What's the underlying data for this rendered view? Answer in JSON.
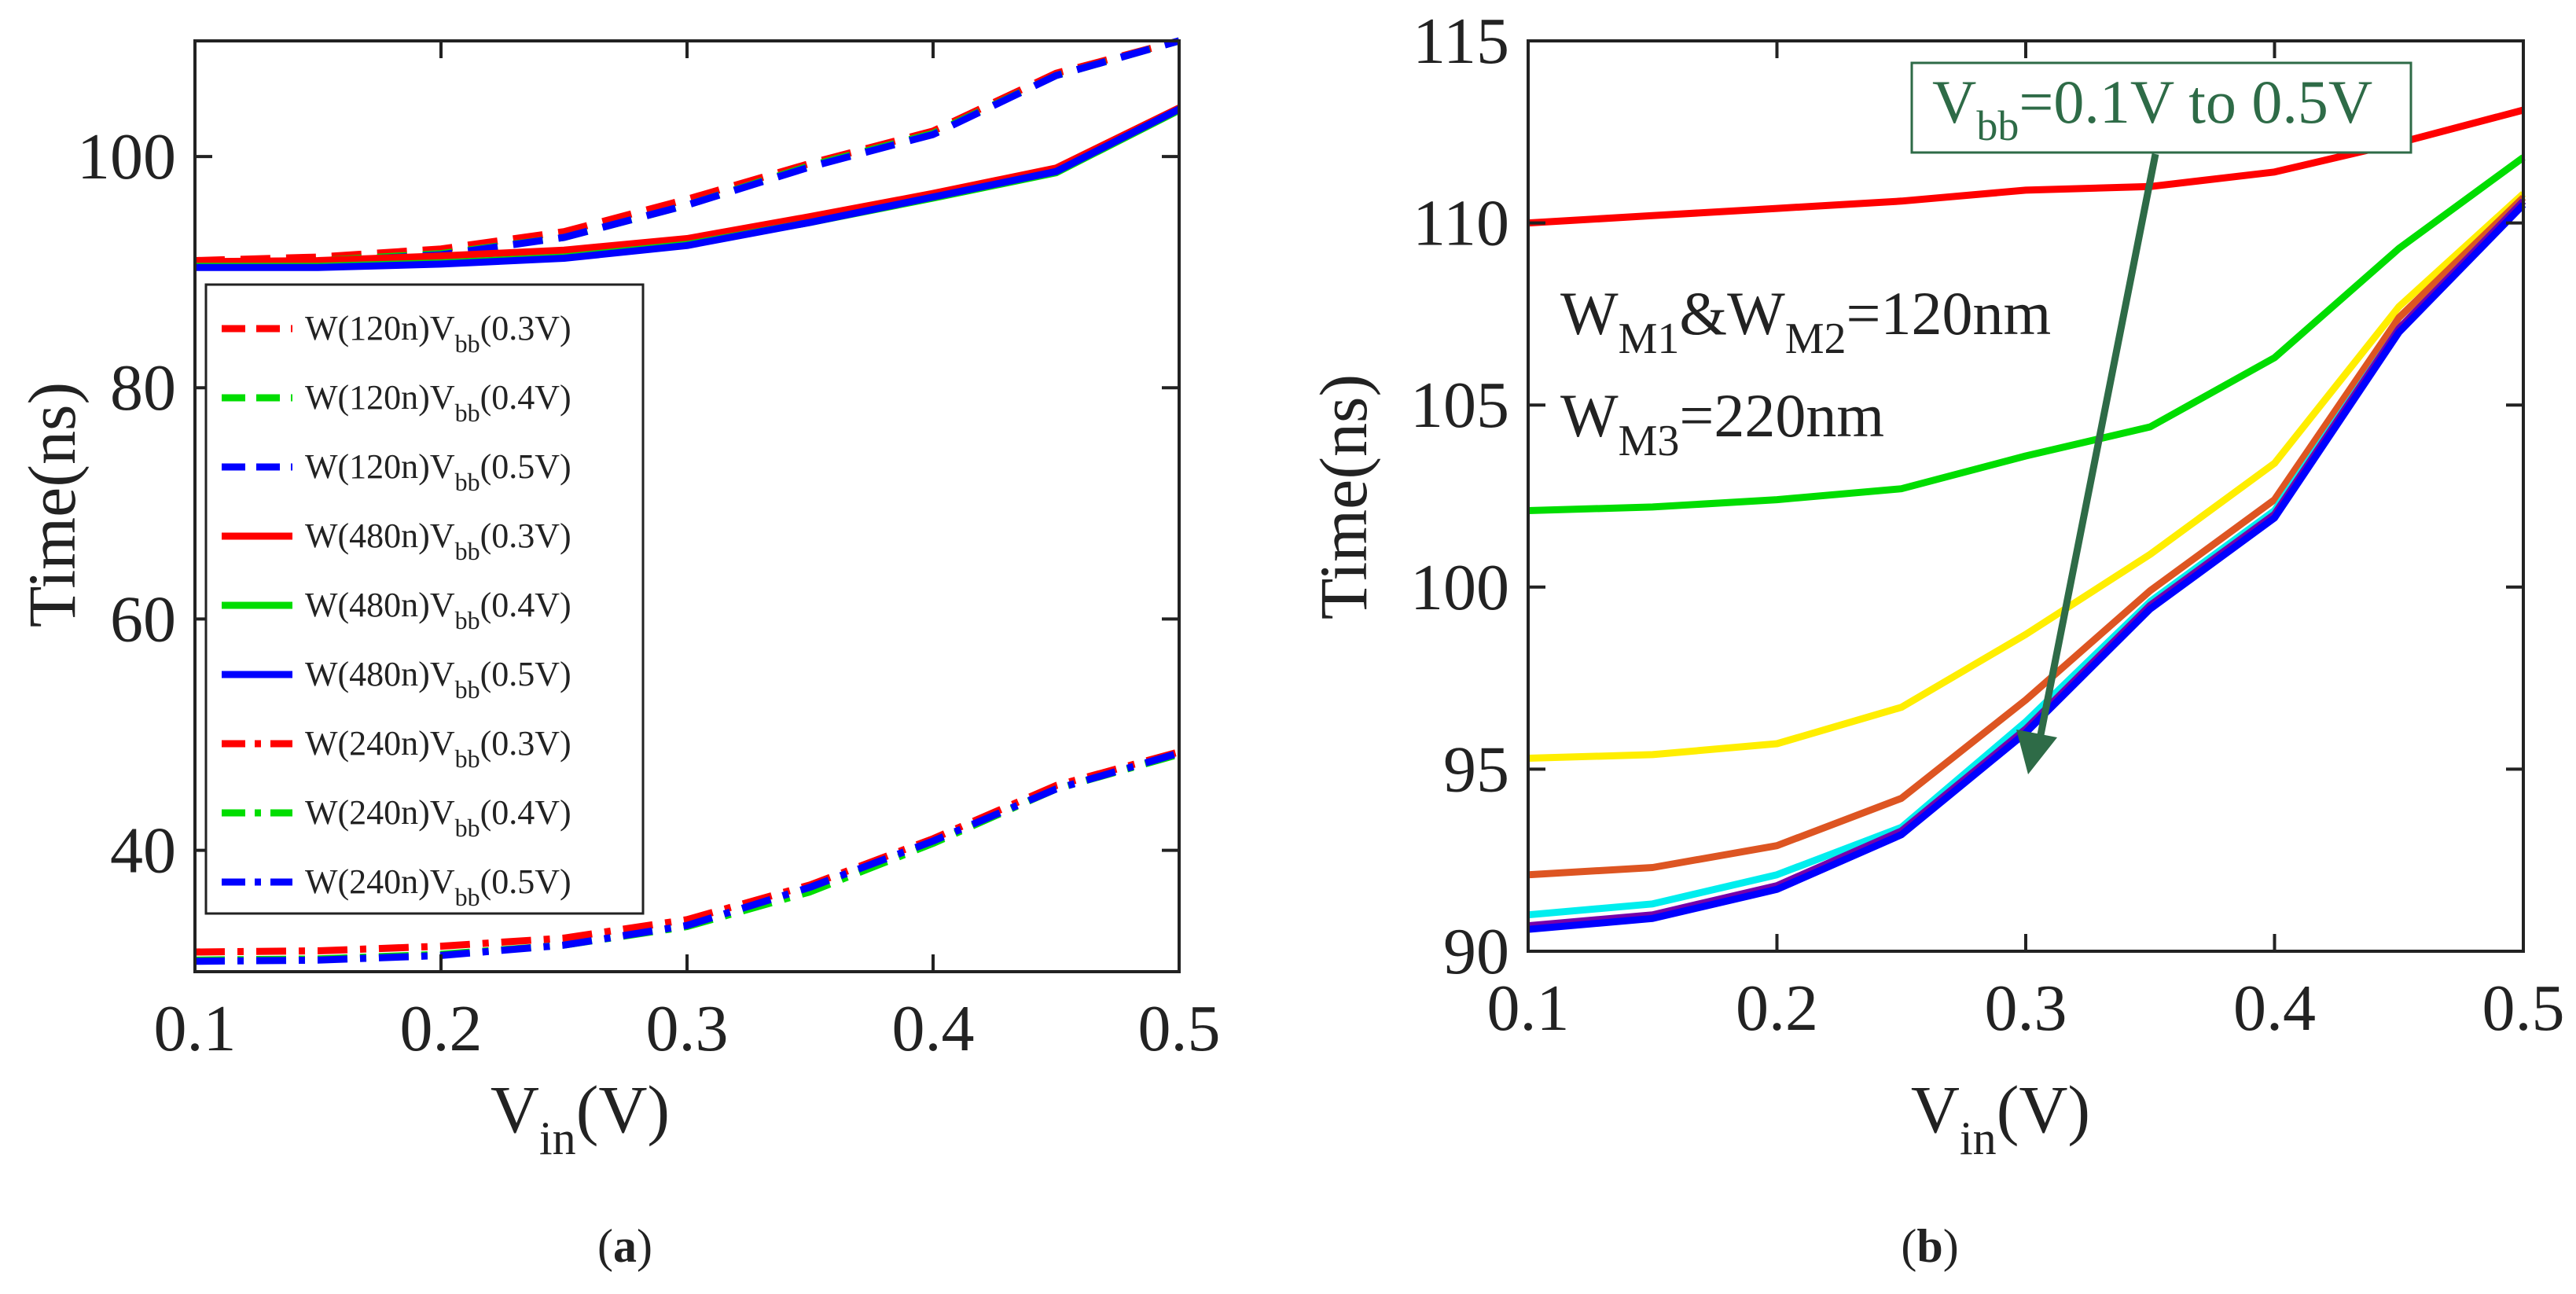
{
  "chart_data": [
    {
      "type": "line",
      "panel": "a",
      "caption": "(a)",
      "xlabel": "V_in(V)",
      "ylabel": "Time(ns)",
      "xlim": [
        0.1,
        0.5
      ],
      "ylim": [
        29.5,
        110
      ],
      "xticks": [
        "0.1",
        "0.2",
        "0.3",
        "0.4",
        "0.5"
      ],
      "yticks": [
        {
          "v": 40,
          "label": "40"
        },
        {
          "v": 60,
          "label": "60"
        },
        {
          "v": 80,
          "label": "80"
        },
        {
          "v": 100,
          "label": "100"
        }
      ],
      "grid": false,
      "legend_position": "left",
      "x": [
        0.1,
        0.15,
        0.2,
        0.25,
        0.3,
        0.35,
        0.4,
        0.45,
        0.5
      ],
      "series": [
        {
          "name": "W(120n)V_bb(0.3V)",
          "color": "#ff0000",
          "dash": "dashed",
          "values": [
            91.0,
            91.3,
            92.0,
            93.5,
            96.3,
            99.4,
            102.2,
            107.2,
            110.0
          ]
        },
        {
          "name": "W(120n)V_bb(0.4V)",
          "color": "#00dd00",
          "dash": "dashed",
          "values": [
            90.7,
            91.0,
            91.6,
            93.0,
            95.8,
            99.2,
            102.0,
            107.0,
            110.0
          ]
        },
        {
          "name": "W(120n)V_bb(0.5V)",
          "color": "#0000ff",
          "dash": "dashed",
          "values": [
            90.6,
            90.9,
            91.5,
            93.0,
            95.8,
            99.1,
            101.9,
            107.0,
            110.0
          ]
        },
        {
          "name": "W(480n)V_bb(0.3V)",
          "color": "#ff0000",
          "dash": "solid",
          "values": [
            90.9,
            91.0,
            91.4,
            91.9,
            92.9,
            94.8,
            96.8,
            99.0,
            104.2
          ]
        },
        {
          "name": "W(480n)V_bb(0.4V)",
          "color": "#00dd00",
          "dash": "solid",
          "values": [
            90.5,
            90.5,
            90.8,
            91.3,
            92.4,
            94.3,
            96.4,
            98.6,
            104.0
          ]
        },
        {
          "name": "W(480n)V_bb(0.5V)",
          "color": "#0000ff",
          "dash": "solid",
          "values": [
            90.4,
            90.4,
            90.7,
            91.2,
            92.3,
            94.3,
            96.5,
            98.7,
            104.1
          ]
        },
        {
          "name": "W(240n)V_bb(0.3V)",
          "color": "#ff0000",
          "dash": "dashdot",
          "values": [
            31.2,
            31.3,
            31.7,
            32.4,
            34.0,
            37.0,
            41.0,
            45.6,
            48.5
          ]
        },
        {
          "name": "W(240n)V_bb(0.4V)",
          "color": "#00dd00",
          "dash": "dashdot",
          "values": [
            30.5,
            30.6,
            31.0,
            31.8,
            33.4,
            36.4,
            40.6,
            45.3,
            48.3
          ]
        },
        {
          "name": "W(240n)V_bb(0.5V)",
          "color": "#0000ff",
          "dash": "dashdot",
          "values": [
            30.4,
            30.5,
            30.9,
            31.8,
            33.5,
            36.8,
            40.8,
            45.3,
            48.4
          ]
        }
      ]
    },
    {
      "type": "line",
      "panel": "b",
      "caption": "(b)",
      "xlabel": "V_in(V)",
      "ylabel": "Time(ns)",
      "xlim": [
        0.1,
        0.5
      ],
      "ylim": [
        90,
        115
      ],
      "xticks": [
        "0.1",
        "0.2",
        "0.3",
        "0.4",
        "0.5"
      ],
      "yticks": [
        {
          "v": 90,
          "label": "90"
        },
        {
          "v": 95,
          "label": "95"
        },
        {
          "v": 100,
          "label": "100"
        },
        {
          "v": 105,
          "label": "105"
        },
        {
          "v": 110,
          "label": "110"
        },
        {
          "v": 115,
          "label": "115"
        }
      ],
      "grid": false,
      "x": [
        0.1,
        0.15,
        0.2,
        0.25,
        0.3,
        0.35,
        0.4,
        0.45,
        0.5
      ],
      "series": [
        {
          "color": "#ff0000",
          "values": [
            110.0,
            110.2,
            110.4,
            110.6,
            110.9,
            111.0,
            111.4,
            112.2,
            113.1
          ]
        },
        {
          "color": "#00dd00",
          "values": [
            102.1,
            102.2,
            102.4,
            102.7,
            103.6,
            104.4,
            106.3,
            109.3,
            111.8
          ]
        },
        {
          "color": "#ffee00",
          "values": [
            95.3,
            95.4,
            95.7,
            96.7,
            98.7,
            100.9,
            103.4,
            107.7,
            110.8
          ]
        },
        {
          "color": "#dd5522",
          "values": [
            92.1,
            92.3,
            92.9,
            94.2,
            96.9,
            99.9,
            102.4,
            107.4,
            110.7
          ]
        },
        {
          "color": "#00eeee",
          "values": [
            91.0,
            91.3,
            92.1,
            93.4,
            96.3,
            99.6,
            102.1,
            107.1,
            110.6
          ]
        },
        {
          "color": "#7700aa",
          "values": [
            90.7,
            91.0,
            91.8,
            93.3,
            96.1,
            99.5,
            102.0,
            107.1,
            110.6
          ]
        },
        {
          "color": "#0000ff",
          "values": [
            90.6,
            90.9,
            91.7,
            93.2,
            96.0,
            99.4,
            101.9,
            107.0,
            110.5
          ]
        }
      ],
      "annotations": {
        "box_text": "V_bb=0.1V to 0.5V",
        "box_color": "#2e6b47",
        "text1": "W_M1&W_M2=120nm",
        "text2": "W_M3=220nm"
      }
    }
  ]
}
